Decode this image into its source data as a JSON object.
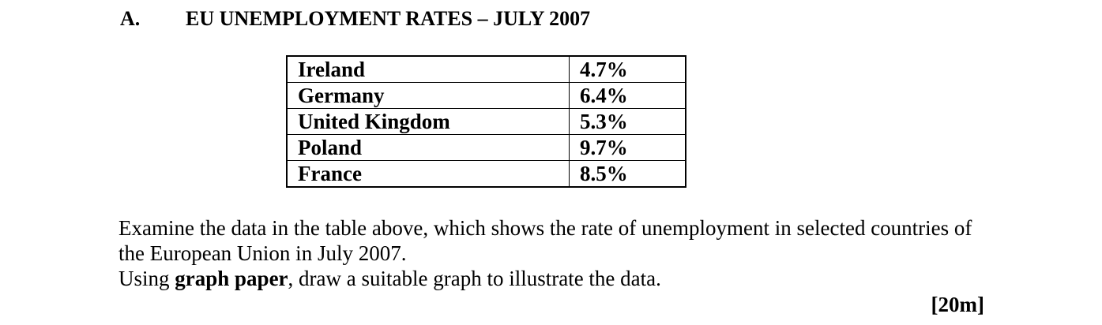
{
  "question": {
    "letter": "A.",
    "title": "EU UNEMPLOYMENT RATES – JULY 2007"
  },
  "table": {
    "rows": [
      {
        "country": "Ireland",
        "rate": "4.7%"
      },
      {
        "country": "Germany",
        "rate": "6.4%"
      },
      {
        "country": "United Kingdom",
        "rate": "5.3%"
      },
      {
        "country": "Poland",
        "rate": "9.7%"
      },
      {
        "country": "France",
        "rate": "8.5%"
      }
    ]
  },
  "instructions": {
    "line1": "Examine the data in the table above, which shows the rate of unemployment in selected countries of the European Union in July 2007.",
    "line2_pre": "Using ",
    "line2_bold": "graph paper",
    "line2_post": ", draw a suitable graph to illustrate the data."
  },
  "marks": "[20m]"
}
